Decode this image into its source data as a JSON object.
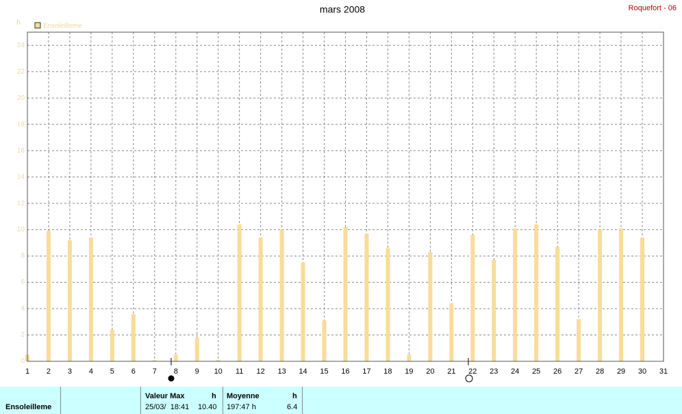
{
  "chart_data": {
    "type": "bar",
    "title": "mars 2008",
    "station": "Roquefort - 06",
    "unit": "h",
    "legend": "Ensoleilleme",
    "color": "#f8dc98",
    "x": [
      1,
      2,
      3,
      4,
      5,
      6,
      7,
      8,
      9,
      10,
      11,
      12,
      13,
      14,
      15,
      16,
      17,
      18,
      19,
      20,
      21,
      22,
      23,
      24,
      25,
      26,
      27,
      28,
      29,
      30
    ],
    "values": [
      0.5,
      9.9,
      9.2,
      9.4,
      2.4,
      3.6,
      0.1,
      0.5,
      1.8,
      0.1,
      10.4,
      9.4,
      10,
      7.5,
      3.1,
      10.2,
      9.7,
      8.6,
      0.5,
      8.3,
      4.4,
      9.6,
      7.7,
      10.1,
      10.4,
      8.7,
      3.2,
      10,
      10.1,
      9.4
    ],
    "xlim": [
      1,
      31
    ],
    "xticks": [
      1,
      2,
      3,
      4,
      5,
      6,
      7,
      8,
      9,
      10,
      11,
      12,
      13,
      14,
      15,
      16,
      17,
      18,
      19,
      20,
      21,
      22,
      23,
      24,
      25,
      26,
      27,
      28,
      29,
      30,
      31
    ],
    "ylim": [
      0,
      25
    ],
    "yticks": [
      0,
      2,
      4,
      6,
      8,
      10,
      12,
      14,
      16,
      18,
      20,
      22,
      24
    ],
    "grid": true
  },
  "footer": {
    "name": "Ensoleilleme",
    "max_label": "Valeur Max",
    "max_unit": "h",
    "max_date": "25/03/  18:41",
    "max_value": "10.40",
    "mean_label": "Moyenne",
    "mean_unit": "h",
    "total": "197:47 h",
    "mean_value": "6.4"
  }
}
